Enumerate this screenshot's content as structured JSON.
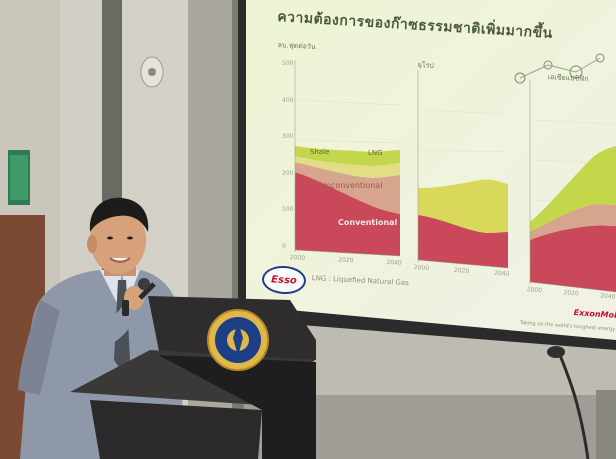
{
  "slide": {
    "title": "ความต้องการของก๊าซธรรมชาติเพิ่มมากขึ้น",
    "panel1": {
      "unit": "ลบ.ฟุตต่อวัน",
      "y_ticks": [
        "500",
        "400",
        "300",
        "200",
        "100",
        "0"
      ],
      "x_ticks": [
        "2000",
        "2020",
        "2040"
      ],
      "bands": [
        "Shale",
        "LNG",
        "Unconventional",
        "Conventional"
      ]
    },
    "panel2": {
      "unit": "ยุโรป",
      "x_ticks": [
        "2000",
        "2020",
        "2040"
      ]
    },
    "panel3": {
      "unit": "เอเชียแปซิฟิก",
      "x_ticks": [
        "2000",
        "2020",
        "2040"
      ]
    },
    "footer": {
      "logo": "Esso",
      "legend": "LNG : Liquefied Natural Gas",
      "brand": "ExxonMobil",
      "note": "Taking on the world's toughest energy challenges"
    },
    "colors": {
      "conventional": "#c9485a",
      "unconventional": "#d7a58e",
      "shale": "#c4d64a",
      "lng": "#e3de86",
      "background": "#eef3d0"
    }
  },
  "podium": {
    "emblem_colors": [
      "#1d3f86",
      "#d4a83b"
    ]
  }
}
